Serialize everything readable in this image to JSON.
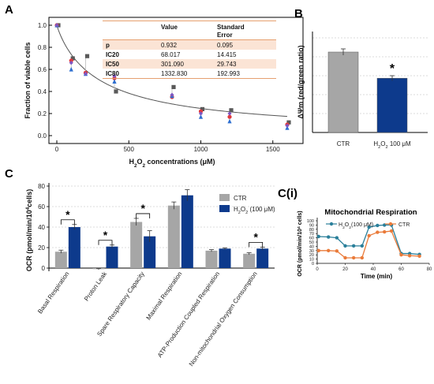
{
  "panel_labels": {
    "a": "A",
    "b": "B",
    "c": "C",
    "ci": "C(i)"
  },
  "colors": {
    "ctr": "#a6a6a6",
    "h2o2": "#0d3a8c",
    "line_h2o2": "#2a7f9a",
    "line_ctr": "#ea7b3a",
    "table_band": "#fbe4d5",
    "table_rule": "#e6a070"
  },
  "chart_data": [
    {
      "id": "A",
      "type": "scatter",
      "xlabel_parts": [
        "H",
        "2",
        "O",
        "2",
        " concentrations (μM)"
      ],
      "ylabel": "Fraction of viable cells",
      "xlim": [
        0,
        1600
      ],
      "ylim": [
        0,
        1.0
      ],
      "xticks": [
        "0",
        "500",
        "1000",
        "1500"
      ],
      "yticks": [
        "0.0",
        "0.2",
        "0.4",
        "0.6",
        "0.8",
        "1.0"
      ],
      "fit_curve": {
        "p": 0.932,
        "ic50": 301.09
      },
      "series": [
        {
          "marker": "square",
          "color": "#595959",
          "x": [
            0,
            100,
            200,
            400,
            800,
            1000,
            1200,
            1600
          ],
          "y": [
            1.0,
            0.7,
            0.72,
            0.4,
            0.44,
            0.24,
            0.23,
            0.12
          ]
        },
        {
          "marker": "circle",
          "color": "#e0393e",
          "x": [
            0,
            100,
            200,
            400,
            800,
            1000,
            1200,
            1600
          ],
          "y": [
            1.0,
            0.68,
            0.57,
            0.52,
            0.35,
            0.22,
            0.17,
            0.1
          ]
        },
        {
          "marker": "triangle",
          "color": "#2e6fd0",
          "x": [
            0,
            100,
            200,
            400,
            800,
            1000,
            1200,
            1600
          ],
          "y": [
            1.0,
            0.6,
            0.56,
            0.49,
            0.36,
            0.17,
            0.13,
            0.07
          ]
        },
        {
          "marker": "diamond",
          "color": "#7e57c2",
          "x": [
            0,
            100,
            200,
            400,
            800,
            1000,
            1200,
            1600
          ],
          "y": [
            1.0,
            0.66,
            0.56,
            0.54,
            0.37,
            0.2,
            0.2,
            0.09
          ]
        }
      ],
      "table": {
        "headers": [
          "",
          "Value",
          "Standard Error"
        ],
        "rows": [
          [
            "p",
            "0.932",
            "0.095"
          ],
          [
            "IC20",
            "68.017",
            "14.415"
          ],
          [
            "IC50",
            "301.090",
            "29.743"
          ],
          [
            "IC80",
            "1332.830",
            "192.993"
          ]
        ]
      }
    },
    {
      "id": "B",
      "type": "bar",
      "ylabel": "ΔΨm (red/green ratio)",
      "categories": [
        "CTR",
        "H2O2 100 μM"
      ],
      "category_parts": [
        [
          "CTR"
        ],
        [
          "H",
          "2",
          "O",
          "2",
          " 100 μM"
        ]
      ],
      "values": [
        2.55,
        1.72
      ],
      "errors": [
        0.1,
        0.08
      ],
      "ylim": [
        0,
        3.2
      ],
      "significance": "*"
    },
    {
      "id": "C",
      "type": "bar",
      "ylabel_parts": [
        "OCR (pmol/min/10",
        "4",
        "cells)"
      ],
      "yticks": [
        "0",
        "20",
        "40",
        "60",
        "80"
      ],
      "ylim": [
        0,
        80
      ],
      "categories": [
        "Basal Respiration",
        "Proton Leak",
        "Spare Respiratory Capacity",
        "Maximal Respiration",
        "ATP-Production Coupled Respiration",
        "Non-mitochondrial Oxygen Consumption"
      ],
      "series": [
        {
          "name": "CTR",
          "values": [
            16,
            -1,
            45,
            61,
            17,
            14
          ],
          "errors": [
            1.5,
            0.5,
            3.5,
            3.5,
            1.0,
            1.0
          ]
        },
        {
          "name": "H2O2 (100 μM)",
          "name_parts": [
            "H",
            "2",
            "O",
            "2",
            " (100 μM)"
          ],
          "values": [
            40,
            21,
            31,
            71,
            19,
            19
          ],
          "errors": [
            2.5,
            1.5,
            5.5,
            5.5,
            0.8,
            1.5
          ]
        }
      ],
      "significance": [
        {
          "category": "Basal Respiration",
          "label": "*"
        },
        {
          "category": "Proton Leak",
          "label": "*"
        },
        {
          "category": "Spare Respiratory Capacity",
          "label": "*"
        },
        {
          "category": "Non-mitochondrial Oxygen Consumption",
          "label": "*"
        }
      ]
    },
    {
      "id": "C(i)",
      "type": "line",
      "title": "Mitochondrial Respiration",
      "xlabel": "Time (min)",
      "ylabel_parts": [
        "OCR (pmol/min/10",
        "4",
        " cells)"
      ],
      "xlim": [
        0,
        80
      ],
      "ylim": [
        0,
        100
      ],
      "xticks": [
        "0",
        "20",
        "40",
        "60",
        "80"
      ],
      "yticks": [
        "0",
        "10",
        "20",
        "30",
        "40",
        "50",
        "60",
        "70",
        "80",
        "90",
        "100"
      ],
      "x": [
        1,
        8,
        14,
        20,
        26,
        32,
        37,
        43,
        48,
        53,
        60,
        66,
        73
      ],
      "series": [
        {
          "name": "H2O2 (100 μM)",
          "name_parts": [
            "H",
            "2",
            "O",
            "2",
            "(100 μM)"
          ],
          "values": [
            63,
            62,
            60,
            41,
            41,
            41,
            85,
            89,
            90,
            90,
            23,
            23,
            21
          ]
        },
        {
          "name": "CTR",
          "values": [
            30,
            30,
            29,
            13,
            13,
            13,
            65,
            73,
            74,
            76,
            20,
            18,
            17
          ]
        }
      ]
    }
  ]
}
